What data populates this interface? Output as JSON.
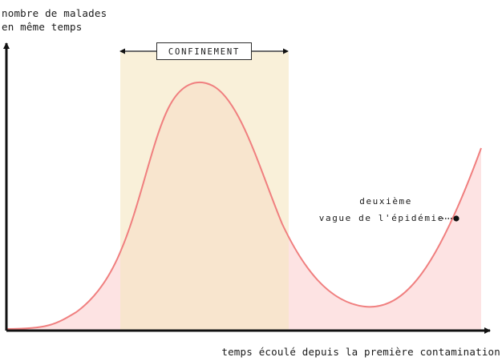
{
  "y_axis_label": [
    "nombre de malades",
    "en même temps"
  ],
  "x_axis_label": "temps écoulé depuis la première contamination",
  "lockdown_label": "CONFINEMENT",
  "second_wave_label": [
    "deuxième",
    "vague de l'épidémie"
  ],
  "colors": {
    "curve": "#f07f7f",
    "area_fill": "#fde3e3",
    "lockdown_band": "#faefd6",
    "axes": "#111111"
  }
}
